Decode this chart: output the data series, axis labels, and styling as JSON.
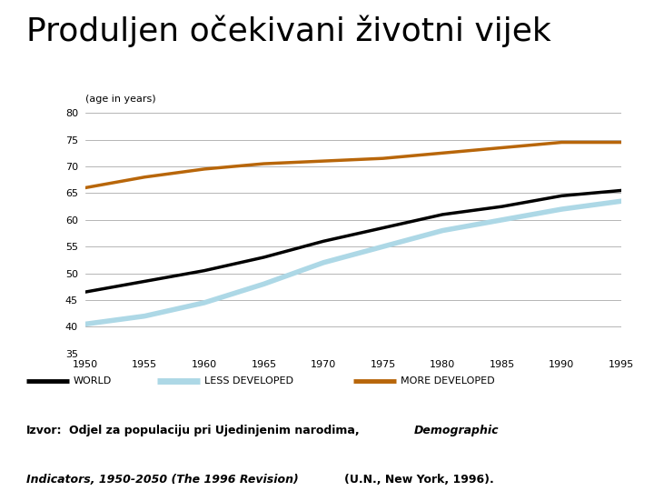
{
  "title": "Produljen očekivani životni vijek",
  "ylabel": "(age in years)",
  "years": [
    1950,
    1955,
    1960,
    1965,
    1970,
    1975,
    1980,
    1985,
    1990,
    1995
  ],
  "world": [
    46.5,
    48.5,
    50.5,
    53.0,
    56.0,
    58.5,
    61.0,
    62.5,
    64.5,
    65.5
  ],
  "less_developed": [
    40.5,
    42.0,
    44.5,
    48.0,
    52.0,
    55.0,
    58.0,
    60.0,
    62.0,
    63.5
  ],
  "more_developed": [
    66.0,
    68.0,
    69.5,
    70.5,
    71.0,
    71.5,
    72.5,
    73.5,
    74.5,
    74.5
  ],
  "world_color": "#000000",
  "less_developed_color": "#add8e6",
  "more_developed_color": "#b8660a",
  "ylim": [
    35,
    80
  ],
  "yticks": [
    35,
    40,
    45,
    50,
    55,
    60,
    65,
    70,
    75,
    80
  ],
  "xticks": [
    1950,
    1955,
    1960,
    1965,
    1970,
    1975,
    1980,
    1985,
    1990,
    1995
  ],
  "background_color": "#ffffff",
  "title_fontsize": 26,
  "line_width": 2.5,
  "legend_fontsize": 8,
  "tick_fontsize": 8,
  "ylabel_fontsize": 8
}
